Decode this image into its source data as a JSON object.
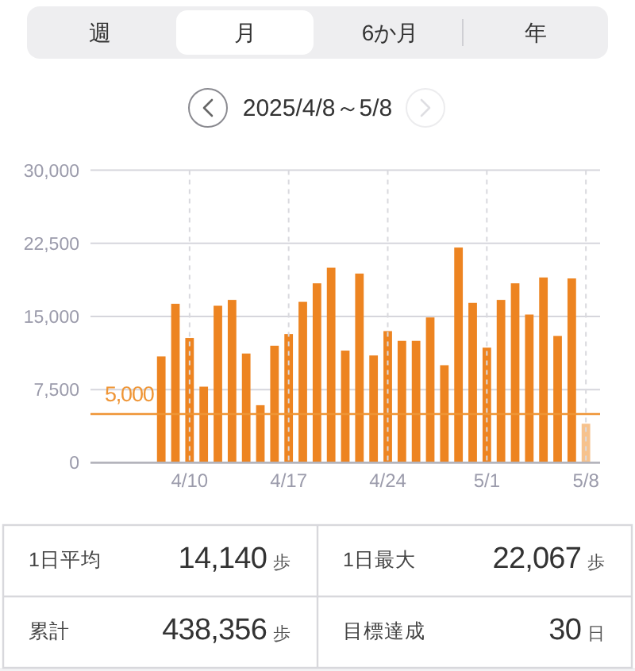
{
  "chart_data": [
    {
      "type": "other",
      "categories": [
        "週",
        "月",
        "6か月",
        "年"
      ],
      "colors": [
        "#eeeef0",
        "#ffffff",
        "#eeeef0",
        "#eeeef0"
      ]
    },
    {
      "type": "bar",
      "title": "2025/4/8～5/8",
      "x": [
        "2025-04-08",
        "2025-04-09",
        "2025-04-10",
        "2025-04-11",
        "2025-04-12",
        "2025-04-13",
        "2025-04-14",
        "2025-04-15",
        "2025-04-16",
        "2025-04-17",
        "2025-04-18",
        "2025-04-19",
        "2025-04-20",
        "2025-04-21",
        "2025-04-22",
        "2025-04-23",
        "2025-04-24",
        "2025-04-25",
        "2025-04-26",
        "2025-04-27",
        "2025-04-28",
        "2025-04-29",
        "2025-04-30",
        "2025-05-01",
        "2025-05-02",
        "2025-05-03",
        "2025-05-04",
        "2025-05-05",
        "2025-05-06",
        "2025-05-07",
        "2025-05-08"
      ],
      "values": [
        10900,
        16300,
        12800,
        7800,
        16100,
        16700,
        11200,
        5900,
        12000,
        13200,
        16500,
        18400,
        20000,
        11500,
        19400,
        11000,
        13500,
        12500,
        12500,
        14900,
        10000,
        22067,
        16400,
        11800,
        16700,
        18400,
        15200,
        19000,
        13000,
        18900,
        4000
      ],
      "colors": [
        "#ed8421",
        "#ed8421",
        "#ed8421",
        "#ed8421",
        "#ed8421",
        "#ed8421",
        "#ed8421",
        "#ed8421",
        "#ed8421",
        "#ed8421",
        "#ed8421",
        "#ed8421",
        "#ed8421",
        "#ed8421",
        "#ed8421",
        "#ed8421",
        "#ed8421",
        "#ed8421",
        "#ed8421",
        "#ed8421",
        "#ed8421",
        "#ed8421",
        "#ed8421",
        "#ed8421",
        "#ed8421",
        "#ed8421",
        "#ed8421",
        "#ed8421",
        "#ed8421",
        "#ed8421",
        "#f6c28d"
      ],
      "xlim": [
        "2025-04-03",
        "2025-05-09"
      ],
      "xticks": [
        {
          "value": "2025-04-10",
          "label": "4/10"
        },
        {
          "value": "2025-04-17",
          "label": "4/17"
        },
        {
          "value": "2025-04-24",
          "label": "4/24"
        },
        {
          "value": "2025-05-01",
          "label": "5/1"
        },
        {
          "value": "2025-05-08",
          "label": "5/8"
        }
      ],
      "ylim": [
        0,
        30000
      ],
      "yticks": [
        0,
        {
          "value": 7500,
          "label": "7,500"
        },
        {
          "value": 15000,
          "label": "15,000"
        },
        {
          "value": 22500,
          "label": "22,500"
        },
        {
          "value": 30000,
          "label": "30,000"
        }
      ],
      "grid": true,
      "ref_lines": [
        {
          "axis": "y",
          "value": 5000,
          "label": "5,000",
          "color": "#ef9535"
        }
      ]
    },
    {
      "type": "other",
      "annotations": [
        "1日平均",
        "14,140",
        "歩",
        "1日最大",
        "22,067",
        "歩",
        "累計",
        "438,356",
        "歩",
        "目標達成",
        "30",
        "日"
      ]
    }
  ]
}
